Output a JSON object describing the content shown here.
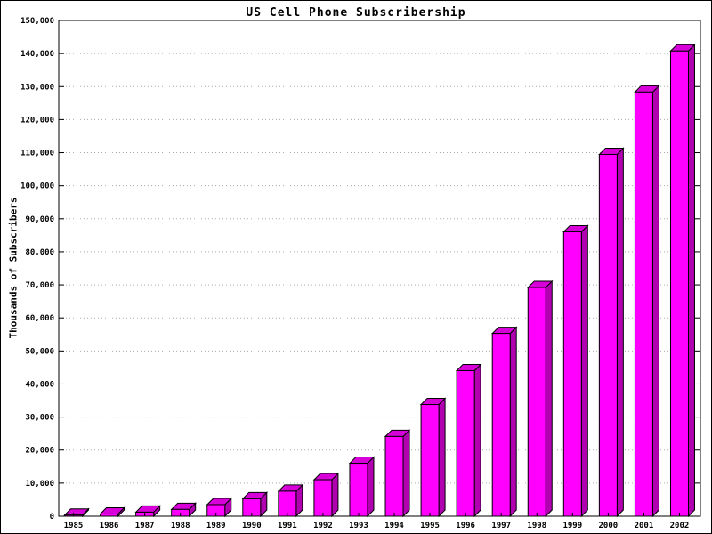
{
  "chart_data": {
    "type": "bar",
    "title": "US Cell Phone Subscribership",
    "ylabel": "Thousands of Subscribers",
    "xlabel": "",
    "categories": [
      "1985",
      "1986",
      "1987",
      "1988",
      "1989",
      "1990",
      "1991",
      "1992",
      "1993",
      "1994",
      "1995",
      "1996",
      "1997",
      "1998",
      "1999",
      "2000",
      "2001",
      "2002"
    ],
    "values": [
      340,
      680,
      1230,
      2070,
      3510,
      5280,
      7560,
      11030,
      16010,
      24130,
      33790,
      44040,
      55310,
      69210,
      86050,
      109480,
      128370,
      140770
    ],
    "ylim": [
      0,
      150000
    ],
    "ytick_step": 10000,
    "ytick_labels": [
      "0",
      "10,000",
      "20,000",
      "30,000",
      "40,000",
      "50,000",
      "60,000",
      "70,000",
      "80,000",
      "90,000",
      "100,000",
      "110,000",
      "120,000",
      "130,000",
      "140,000",
      "150,000"
    ],
    "grid": true,
    "legend": "none",
    "bar_color_front": "#ff00ff",
    "bar_color_side": "#b000b0",
    "bar_color_top": "#d800d8",
    "grid_color": "#aaaaaa",
    "axis_color": "#000000"
  }
}
